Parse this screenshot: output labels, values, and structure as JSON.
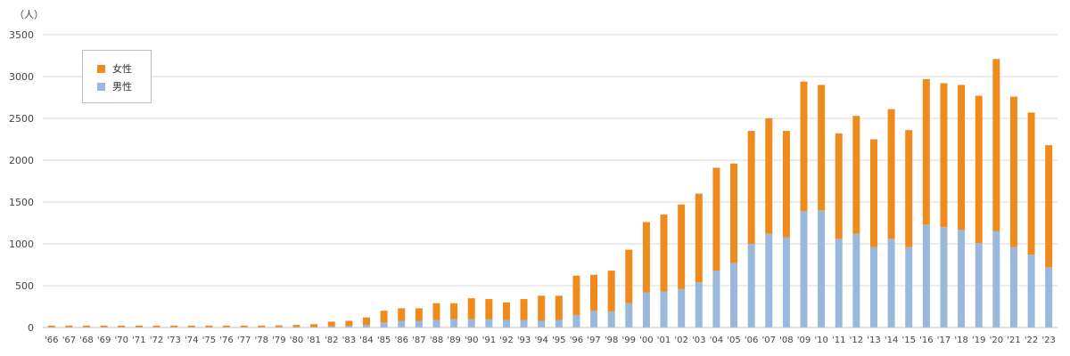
{
  "chart_data": {
    "type": "bar",
    "stacked": true,
    "unit_label": "（人）",
    "ylim": [
      0,
      3500
    ],
    "yticks": [
      0,
      500,
      1000,
      1500,
      2000,
      2500,
      3000,
      3500
    ],
    "grid": true,
    "legend_position": "top-left",
    "categories": [
      "'66",
      "'67",
      "'68",
      "'69",
      "'70",
      "'71",
      "'72",
      "'73",
      "'74",
      "'75",
      "'76",
      "'77",
      "'78",
      "'79",
      "'80",
      "'81",
      "'82",
      "'83",
      "'84",
      "'85",
      "'86",
      "'87",
      "'88",
      "'89",
      "'90",
      "'91",
      "'92",
      "'93",
      "'94",
      "'95",
      "'96",
      "'97",
      "'98",
      "'99",
      "'00",
      "'01",
      "'02",
      "'03",
      "'04",
      "'05",
      "'06",
      "'07",
      "'08",
      "'09",
      "'10",
      "'11",
      "'12",
      "'13",
      "'14",
      "'15",
      "'16",
      "'17",
      "'18",
      "'19",
      "'20",
      "'21",
      "'22",
      "'23"
    ],
    "series": [
      {
        "name": "男性",
        "color": "#9ab7dc",
        "values": [
          3,
          3,
          3,
          3,
          3,
          3,
          3,
          3,
          3,
          3,
          3,
          3,
          3,
          3,
          5,
          5,
          15,
          20,
          30,
          60,
          80,
          80,
          90,
          100,
          100,
          100,
          90,
          90,
          80,
          90,
          150,
          200,
          190,
          290,
          420,
          430,
          460,
          540,
          680,
          770,
          1000,
          1120,
          1080,
          1390,
          1400,
          1060,
          1120,
          960,
          1060,
          960,
          1230,
          1200,
          1170,
          1010,
          1150,
          960,
          870,
          720
        ]
      },
      {
        "name": "女性",
        "color": "#ef8b1c",
        "values": [
          20,
          20,
          20,
          20,
          20,
          20,
          20,
          20,
          20,
          20,
          20,
          20,
          20,
          22,
          25,
          35,
          55,
          60,
          90,
          140,
          150,
          150,
          200,
          190,
          250,
          240,
          210,
          250,
          300,
          290,
          470,
          430,
          490,
          640,
          840,
          920,
          1010,
          1060,
          1230,
          1190,
          1350,
          1380,
          1270,
          1550,
          1500,
          1260,
          1410,
          1290,
          1550,
          1400,
          1740,
          1720,
          1730,
          1760,
          2060,
          1800,
          1700,
          1460
        ]
      }
    ]
  }
}
